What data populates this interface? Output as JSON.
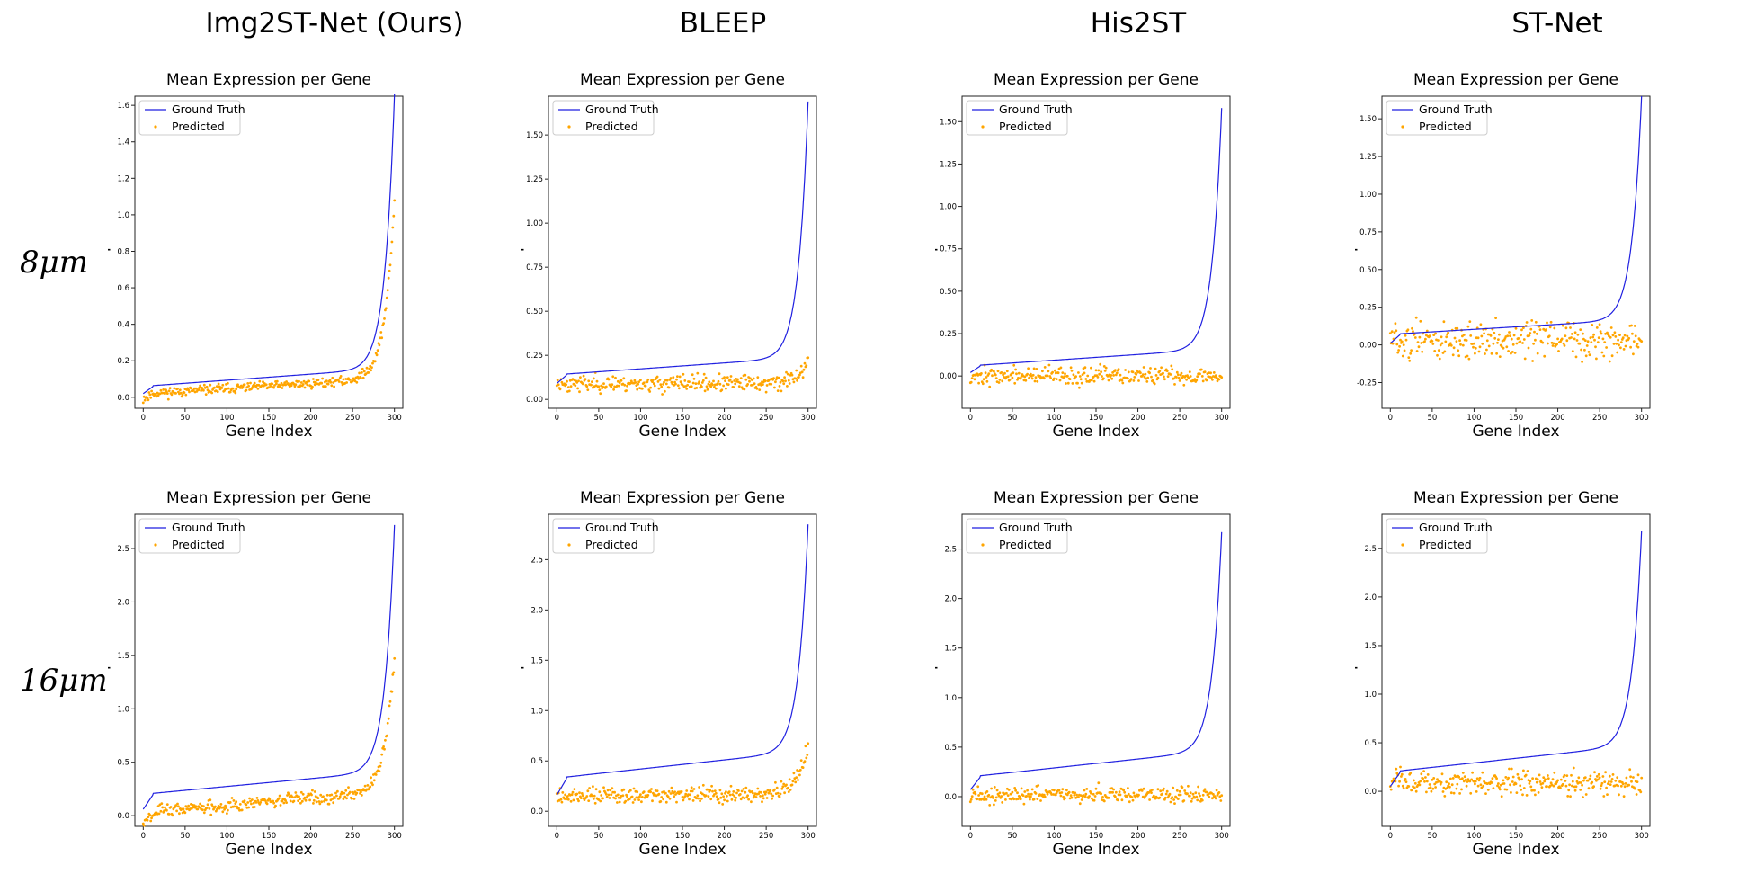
{
  "figure": {
    "column_headers": [
      "Img2ST-Net (Ours)",
      "BLEEP",
      "His2ST",
      "ST-Net"
    ],
    "row_labels": [
      "8μm",
      "16μm"
    ],
    "colors": {
      "ground_truth": "#1f1fe0",
      "predicted": "#ffa500",
      "axes": "#222222"
    }
  },
  "chart_data": [
    {
      "type": "line+scatter",
      "title": "Mean Expression per Gene",
      "xlabel": "Gene Index",
      "ylabel": "Mean Expression",
      "method": "Img2ST-Net (Ours)",
      "resolution": "8μm",
      "xlim": [
        -10,
        310
      ],
      "ylim": [
        -0.06,
        1.65
      ],
      "xticks": [
        0,
        50,
        100,
        150,
        200,
        250,
        300
      ],
      "xtick_labels": [
        "0",
        "50",
        "100",
        "150",
        "200",
        "250",
        "300"
      ],
      "yticks": [
        0,
        0.2,
        0.4,
        0.6,
        0.8,
        1.0,
        1.2,
        1.4,
        1.6
      ],
      "ytick_labels": [
        "0.0",
        "0.2",
        "0.4",
        "0.6",
        "0.8",
        "1.0",
        "1.2",
        "1.4",
        "1.6"
      ],
      "legend": [
        "Ground Truth",
        "Predicted"
      ],
      "legend_loc": "upper-left",
      "gt": {
        "start": 0.02,
        "base": 0.06,
        "slope": 0.1,
        "tail": 1.5
      },
      "pred": {
        "mode": "track",
        "offset": -0.02,
        "scale": 0.65,
        "noise": 0.025,
        "seed": 11
      }
    },
    {
      "type": "line+scatter",
      "title": "Mean Expression per Gene",
      "xlabel": "Gene Index",
      "ylabel": "Mean Expression",
      "method": "BLEEP",
      "resolution": "8μm",
      "xlim": [
        -10,
        310
      ],
      "ylim": [
        -0.05,
        1.72
      ],
      "xticks": [
        0,
        50,
        100,
        150,
        200,
        250,
        300
      ],
      "xtick_labels": [
        "0",
        "50",
        "100",
        "150",
        "200",
        "250",
        "300"
      ],
      "yticks": [
        0,
        0.25,
        0.5,
        0.75,
        1.0,
        1.25,
        1.5
      ],
      "ytick_labels": [
        "0.00",
        "0.25",
        "0.50",
        "0.75",
        "1.00",
        "1.25",
        "1.50"
      ],
      "legend": [
        "Ground Truth",
        "Predicted"
      ],
      "legend_loc": "upper-left",
      "gt": {
        "start": 0.09,
        "base": 0.14,
        "slope": 0.1,
        "tail": 1.45
      },
      "pred": {
        "mode": "flat",
        "mean": 0.09,
        "spread": 0.045,
        "rise": 0.12,
        "seed": 23
      }
    },
    {
      "type": "line+scatter",
      "title": "Mean Expression per Gene",
      "xlabel": "Gene Index",
      "ylabel": "Mean Expression",
      "method": "His2ST",
      "resolution": "8μm",
      "xlim": [
        -10,
        310
      ],
      "ylim": [
        -0.19,
        1.65
      ],
      "xticks": [
        0,
        50,
        100,
        150,
        200,
        250,
        300
      ],
      "xtick_labels": [
        "0",
        "50",
        "100",
        "150",
        "200",
        "250",
        "300"
      ],
      "yticks": [
        0,
        0.25,
        0.5,
        0.75,
        1.0,
        1.25,
        1.5
      ],
      "ytick_labels": [
        "0.00",
        "0.25",
        "0.50",
        "0.75",
        "1.00",
        "1.25",
        "1.50"
      ],
      "legend": [
        "Ground Truth",
        "Predicted"
      ],
      "legend_loc": "upper-left",
      "gt": {
        "start": 0.02,
        "base": 0.06,
        "slope": 0.1,
        "tail": 1.42
      },
      "pred": {
        "mode": "flat",
        "mean": 0.0,
        "spread": 0.05,
        "rise": 0.0,
        "seed": 37
      }
    },
    {
      "type": "line+scatter",
      "title": "Mean Expression per Gene",
      "xlabel": "Gene Index",
      "ylabel": "Mean Expression",
      "method": "ST-Net",
      "resolution": "8μm",
      "xlim": [
        -10,
        310
      ],
      "ylim": [
        -0.42,
        1.65
      ],
      "xticks": [
        0,
        50,
        100,
        150,
        200,
        250,
        300
      ],
      "xtick_labels": [
        "0",
        "50",
        "100",
        "150",
        "200",
        "250",
        "300"
      ],
      "yticks": [
        -0.25,
        0,
        0.25,
        0.5,
        0.75,
        1.0,
        1.25,
        1.5
      ],
      "ytick_labels": [
        "-0.25",
        "0.00",
        "0.25",
        "0.50",
        "0.75",
        "1.00",
        "1.25",
        "1.50"
      ],
      "legend": [
        "Ground Truth",
        "Predicted"
      ],
      "legend_loc": "upper-left",
      "gt": {
        "start": 0.01,
        "base": 0.07,
        "slope": 0.1,
        "tail": 1.48
      },
      "pred": {
        "mode": "flat",
        "mean": 0.03,
        "spread": 0.12,
        "rise": 0.0,
        "seed": 51
      }
    },
    {
      "type": "line+scatter",
      "title": "Mean Expression per Gene",
      "xlabel": "Gene Index",
      "ylabel": "Mean Expression",
      "method": "Img2ST-Net (Ours)",
      "resolution": "16μm",
      "xlim": [
        -10,
        310
      ],
      "ylim": [
        -0.1,
        2.82
      ],
      "xticks": [
        0,
        50,
        100,
        150,
        200,
        250,
        300
      ],
      "xtick_labels": [
        "0",
        "50",
        "100",
        "150",
        "200",
        "250",
        "300"
      ],
      "yticks": [
        0,
        0.5,
        1.0,
        1.5,
        2.0,
        2.5
      ],
      "ytick_labels": [
        "0.0",
        "0.5",
        "1.0",
        "1.5",
        "2.0",
        "2.5"
      ],
      "legend": [
        "Ground Truth",
        "Predicted"
      ],
      "legend_loc": "upper-left",
      "gt": {
        "start": 0.06,
        "base": 0.2,
        "slope": 0.22,
        "tail": 2.3
      },
      "pred": {
        "mode": "track",
        "offset": -0.08,
        "scale": 0.55,
        "noise": 0.06,
        "seed": 67
      }
    },
    {
      "type": "line+scatter",
      "title": "Mean Expression per Gene",
      "xlabel": "Gene Index",
      "ylabel": "Mean Expression",
      "method": "BLEEP",
      "resolution": "16μm",
      "xlim": [
        -10,
        310
      ],
      "ylim": [
        -0.15,
        2.95
      ],
      "xticks": [
        0,
        50,
        100,
        150,
        200,
        250,
        300
      ],
      "xtick_labels": [
        "0",
        "50",
        "100",
        "150",
        "200",
        "250",
        "300"
      ],
      "yticks": [
        0,
        0.5,
        1.0,
        1.5,
        2.0,
        2.5
      ],
      "ytick_labels": [
        "0.0",
        "0.5",
        "1.0",
        "1.5",
        "2.0",
        "2.5"
      ],
      "legend": [
        "Ground Truth",
        "Predicted"
      ],
      "legend_loc": "upper-left",
      "gt": {
        "start": 0.16,
        "base": 0.33,
        "slope": 0.27,
        "tail": 2.25
      },
      "pred": {
        "mode": "flat",
        "mean": 0.16,
        "spread": 0.08,
        "rise": 0.5,
        "seed": 79
      }
    },
    {
      "type": "line+scatter",
      "title": "Mean Expression per Gene",
      "xlabel": "Gene Index",
      "ylabel": "Mean Expression",
      "method": "His2ST",
      "resolution": "16μm",
      "xlim": [
        -10,
        310
      ],
      "ylim": [
        -0.3,
        2.85
      ],
      "xticks": [
        0,
        50,
        100,
        150,
        200,
        250,
        300
      ],
      "xtick_labels": [
        "0",
        "50",
        "100",
        "150",
        "200",
        "250",
        "300"
      ],
      "yticks": [
        0,
        0.5,
        1.0,
        1.5,
        2.0,
        2.5
      ],
      "ytick_labels": [
        "0.0",
        "0.5",
        "1.0",
        "1.5",
        "2.0",
        "2.5"
      ],
      "legend": [
        "Ground Truth",
        "Predicted"
      ],
      "legend_loc": "upper-left",
      "gt": {
        "start": 0.07,
        "base": 0.2,
        "slope": 0.27,
        "tail": 2.2
      },
      "pred": {
        "mode": "flat",
        "mean": 0.02,
        "spread": 0.08,
        "rise": 0.0,
        "seed": 91
      }
    },
    {
      "type": "line+scatter",
      "title": "Mean Expression per Gene",
      "xlabel": "Gene Index",
      "ylabel": "Mean Expression",
      "method": "ST-Net",
      "resolution": "16μm",
      "xlim": [
        -10,
        310
      ],
      "ylim": [
        -0.36,
        2.85
      ],
      "xticks": [
        0,
        50,
        100,
        150,
        200,
        250,
        300
      ],
      "xtick_labels": [
        "0",
        "50",
        "100",
        "150",
        "200",
        "250",
        "300"
      ],
      "yticks": [
        0,
        0.5,
        1.0,
        1.5,
        2.0,
        2.5
      ],
      "ytick_labels": [
        "0.0",
        "0.5",
        "1.0",
        "1.5",
        "2.0",
        "2.5"
      ],
      "legend": [
        "Ground Truth",
        "Predicted"
      ],
      "legend_loc": "upper-left",
      "gt": {
        "start": 0.05,
        "base": 0.2,
        "slope": 0.28,
        "tail": 2.2
      },
      "pred": {
        "mode": "flat",
        "mean": 0.08,
        "spread": 0.12,
        "rise": 0.0,
        "seed": 103
      }
    }
  ]
}
